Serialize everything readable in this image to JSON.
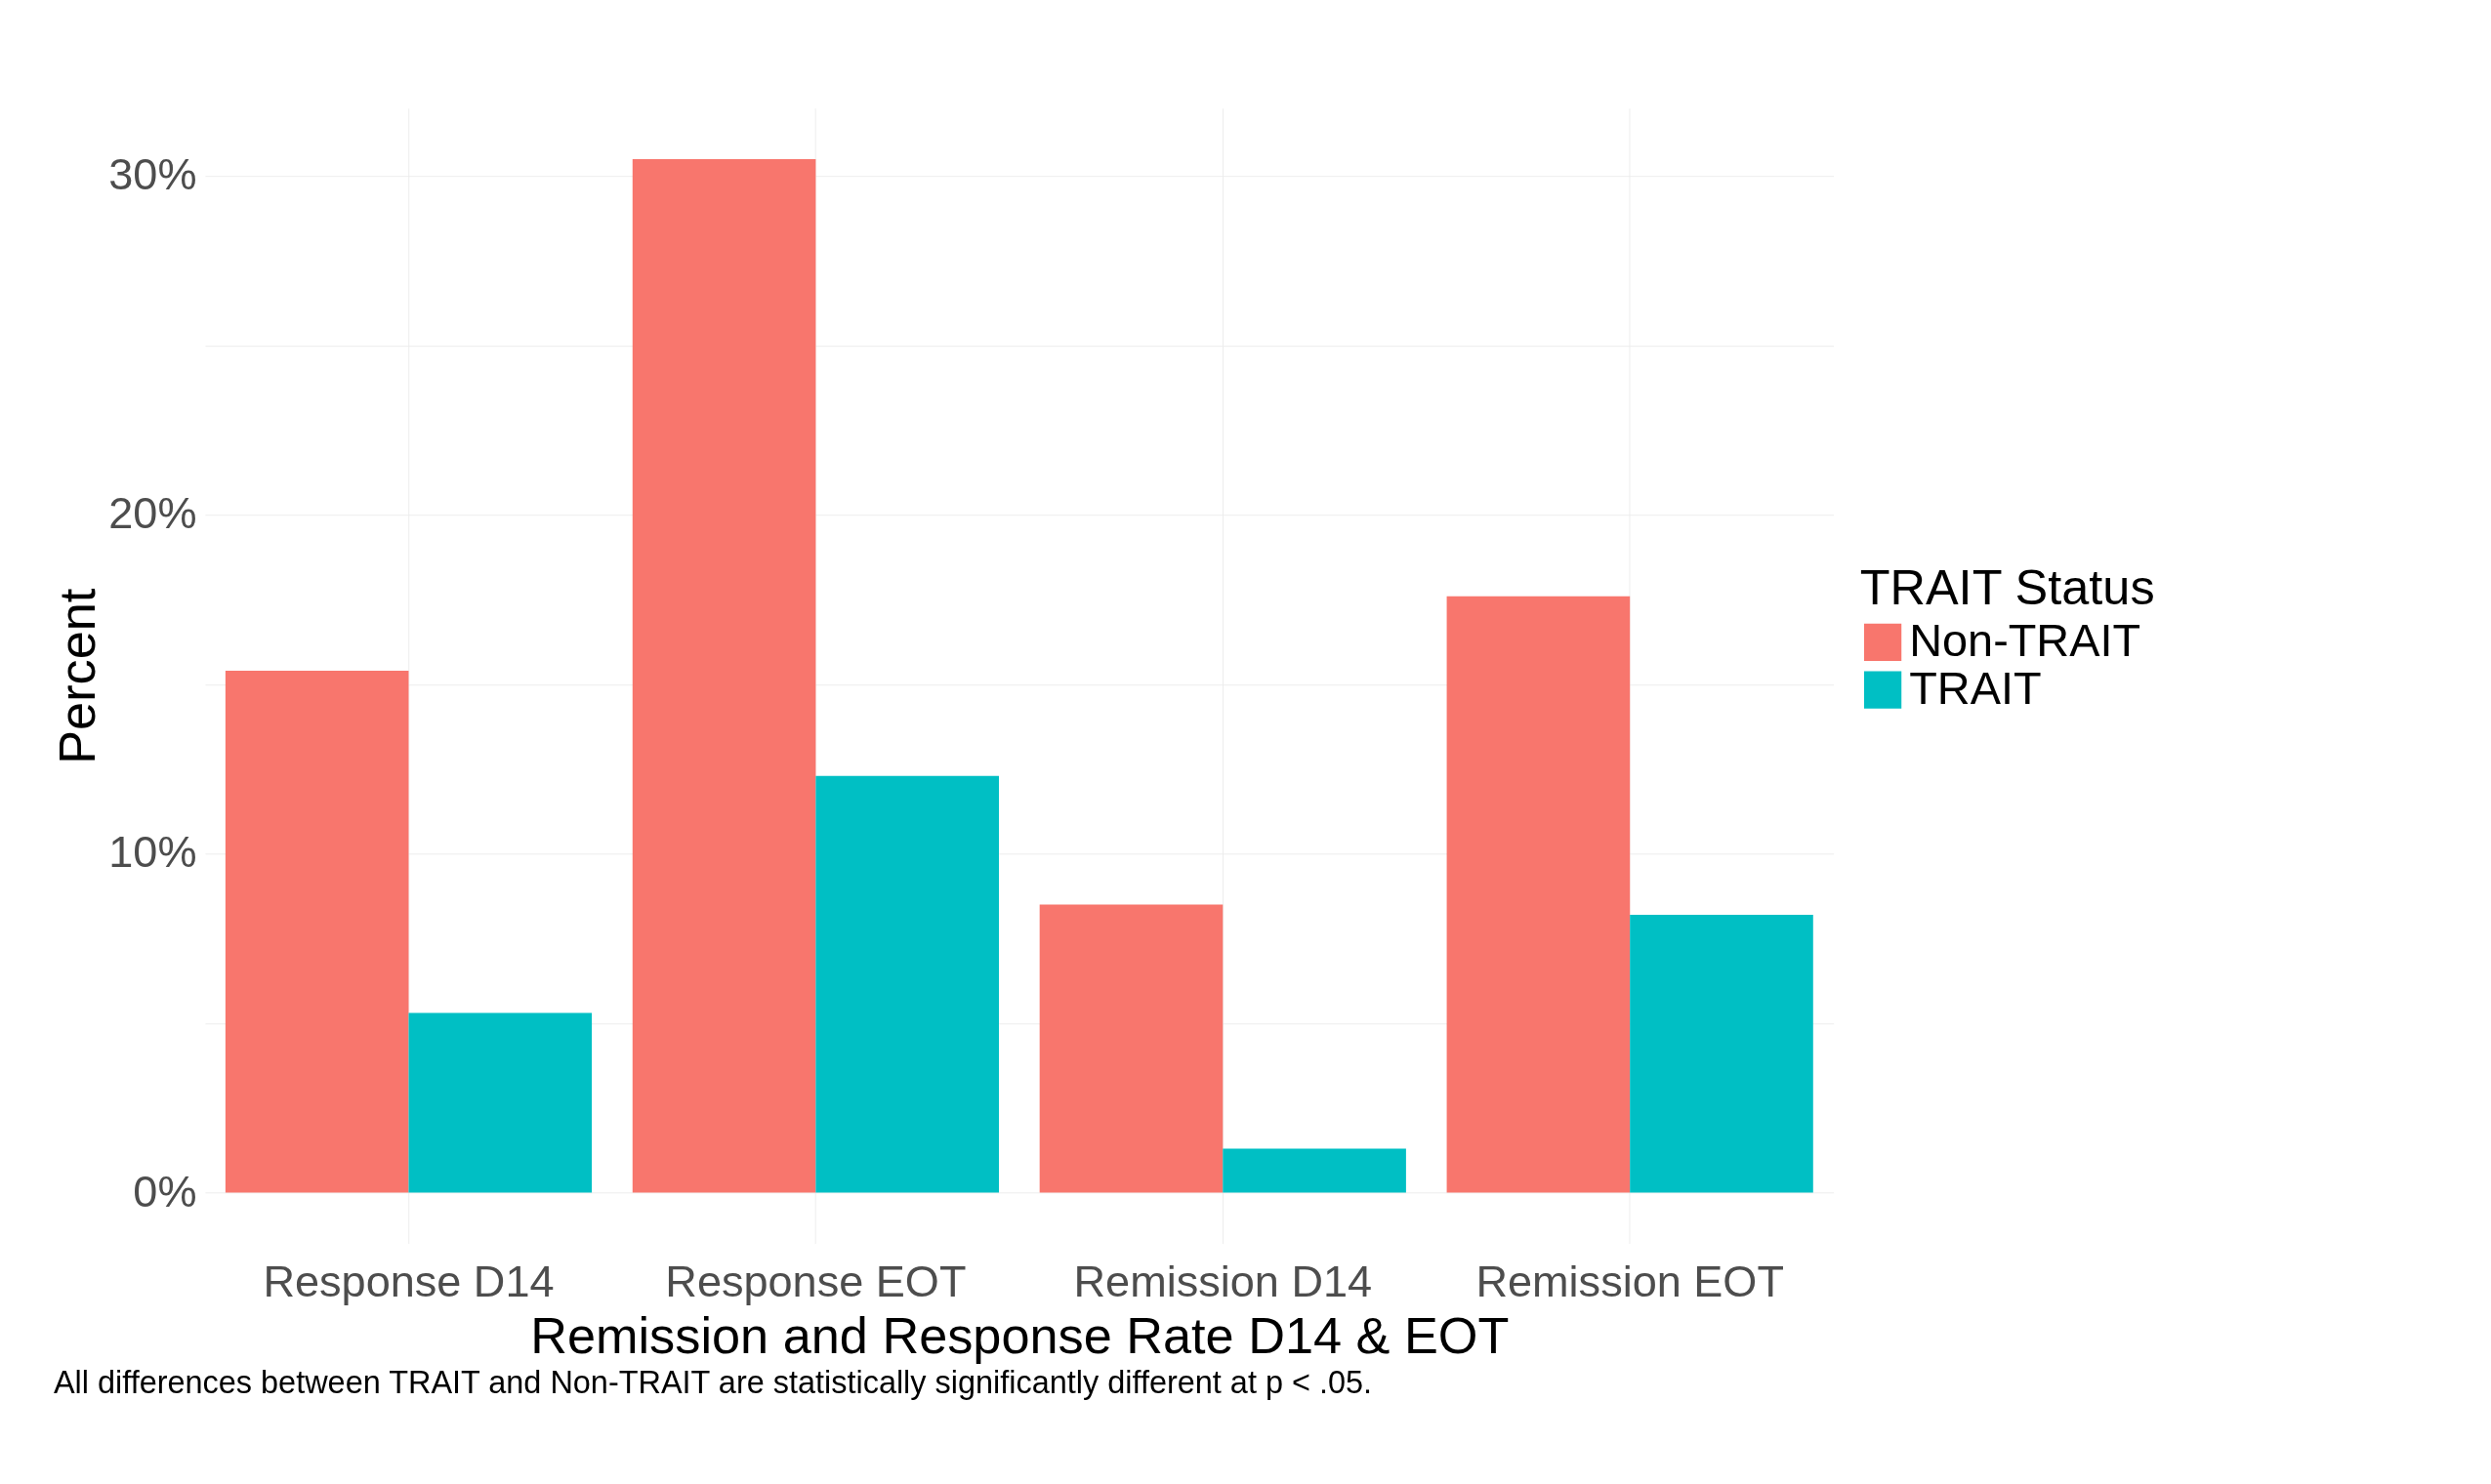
{
  "chart_data": {
    "type": "bar",
    "xlabel": "Remission and Response Rate D14 & EOT",
    "ylabel": "Percent",
    "legend_title": "TRAIT Status",
    "categories": [
      "Response D14",
      "Response EOT",
      "Remission D14",
      "Remission EOT"
    ],
    "series": [
      {
        "name": "Non-TRAIT",
        "color": "#f8766d",
        "values": [
          15.4,
          30.5,
          8.5,
          17.6
        ]
      },
      {
        "name": "TRAIT",
        "color": "#00bfc4",
        "values": [
          5.3,
          12.3,
          1.3,
          8.2
        ]
      }
    ],
    "ylim": [
      -1.5,
      32
    ],
    "yticks": [
      {
        "value": 0,
        "label": "0%"
      },
      {
        "value": 5,
        "label": null
      },
      {
        "value": 10,
        "label": "10%"
      },
      {
        "value": 15,
        "label": null
      },
      {
        "value": 20,
        "label": "20%"
      },
      {
        "value": 25,
        "label": null
      },
      {
        "value": 30,
        "label": "30%"
      }
    ],
    "grid": true,
    "legend": "right",
    "annotations": [
      "All differences between TRAIT and Non-TRAIT are statistically significantly different at p < .05."
    ]
  }
}
